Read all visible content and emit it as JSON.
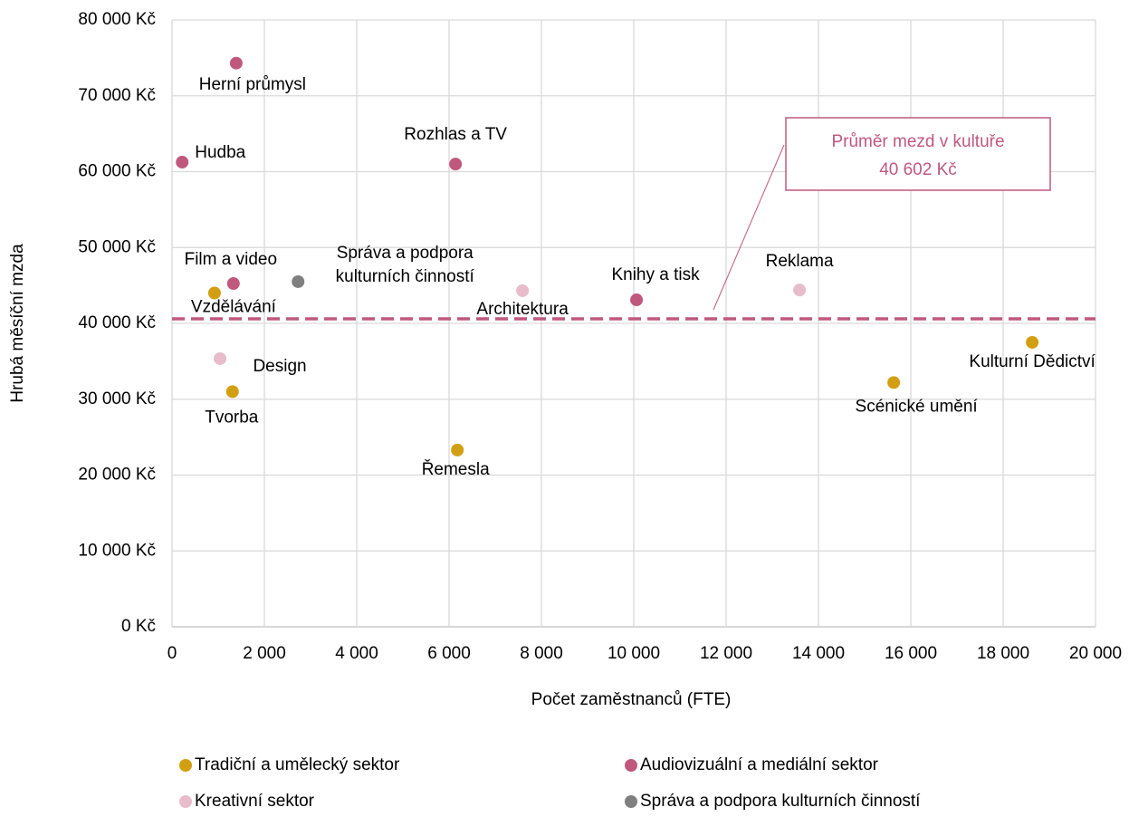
{
  "chart_data": {
    "type": "scatter",
    "x_label": "Počet zaměstnanců (FTE)",
    "y_label": "Hrubá měsíční mzda",
    "xlim": [
      0,
      20000
    ],
    "xticks": [
      0,
      {
        "value": 2000,
        "label": "2 000"
      },
      {
        "value": 4000,
        "label": "4 000"
      },
      {
        "value": 6000,
        "label": "6 000"
      },
      {
        "value": 8000,
        "label": "8 000"
      },
      {
        "value": 10000,
        "label": "10 000"
      },
      {
        "value": 12000,
        "label": "12 000"
      },
      {
        "value": 14000,
        "label": "14 000"
      },
      {
        "value": 16000,
        "label": "16 000"
      },
      {
        "value": 18000,
        "label": "18 000"
      },
      {
        "value": 20000,
        "label": "20 000"
      }
    ],
    "ylim": [
      0,
      80000
    ],
    "yticks": [
      {
        "value": 0,
        "label": "0 Kč"
      },
      {
        "value": 10000,
        "label": "10 000 Kč"
      },
      {
        "value": 20000,
        "label": "20 000 Kč"
      },
      {
        "value": 30000,
        "label": "30 000 Kč"
      },
      {
        "value": 40000,
        "label": "40 000 Kč"
      },
      {
        "value": 50000,
        "label": "50 000 Kč"
      },
      {
        "value": 60000,
        "label": "60 000 Kč"
      },
      {
        "value": 70000,
        "label": "70 000 Kč"
      },
      {
        "value": 80000,
        "label": "80 000 Kč"
      }
    ],
    "grid": true,
    "legend": "bottom",
    "average": {
      "label": "Průměr mezd v kultuře",
      "value": 40602,
      "value_label": "40 602 Kč",
      "color": "#c0587e"
    },
    "series": [
      {
        "name": "Tradiční a umělecký sektor",
        "color": "#d29f13",
        "x": [
          920,
          1310,
          6180,
          15630,
          18630
        ],
        "values": [
          44000,
          31000,
          23300,
          32200,
          37500
        ],
        "labels": [
          "Vzdělávání",
          "Tvorba",
          "Řemesla",
          "Scénické umění",
          "Kulturní Dědictví"
        ]
      },
      {
        "name": "Audiovizuální a mediální sektor",
        "color": "#c0587e",
        "x": [
          1390,
          220,
          6140,
          1330,
          10060
        ],
        "values": [
          74300,
          61250,
          61000,
          45250,
          43100
        ],
        "labels": [
          "Herní průmysl",
          "Hudba",
          "Rozhlas a TV",
          "Film a video",
          "Knihy a tisk"
        ]
      },
      {
        "name": "Kreativní sektor",
        "color": "#e8bccb",
        "x": [
          1040,
          7590,
          13590
        ],
        "values": [
          35350,
          44300,
          44400
        ],
        "labels": [
          "Design",
          "Architektura",
          "Reklama"
        ]
      },
      {
        "name": "Správa a podpora kulturních činností",
        "color": "#7f7f7f",
        "x": [
          2730
        ],
        "values": [
          45500
        ],
        "labels": [
          "Správa a podpora kulturních činností"
        ]
      }
    ]
  }
}
